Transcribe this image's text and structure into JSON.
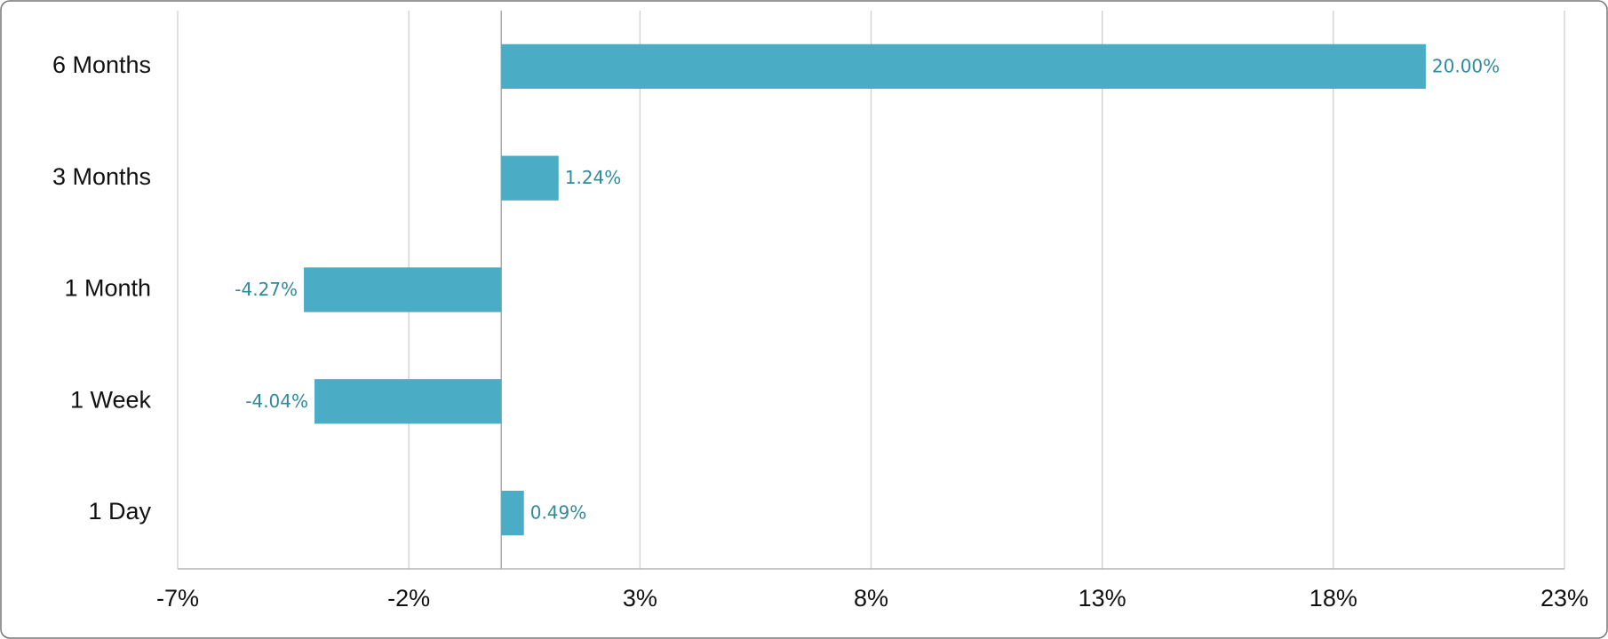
{
  "chart_data": {
    "type": "hbar",
    "categories": [
      "6 Months",
      "3 Months",
      "1 Month",
      "1 Week",
      "1 Day"
    ],
    "values": [
      20.0,
      1.24,
      -4.27,
      -4.04,
      0.49
    ],
    "value_labels": [
      "20.00%",
      "1.24%",
      "-4.27%",
      "-4.04%",
      "0.49%"
    ],
    "color": "#4bacc6",
    "xlim": [
      -7,
      23
    ],
    "xticks": [
      {
        "value": -7,
        "label": "-7%"
      },
      {
        "value": -2,
        "label": "-2%"
      },
      {
        "value": 3,
        "label": "3%"
      },
      {
        "value": 8,
        "label": "8%"
      },
      {
        "value": 13,
        "label": "13%"
      },
      {
        "value": 18,
        "label": "18%"
      },
      {
        "value": 23,
        "label": "23%"
      }
    ],
    "grid": true
  }
}
